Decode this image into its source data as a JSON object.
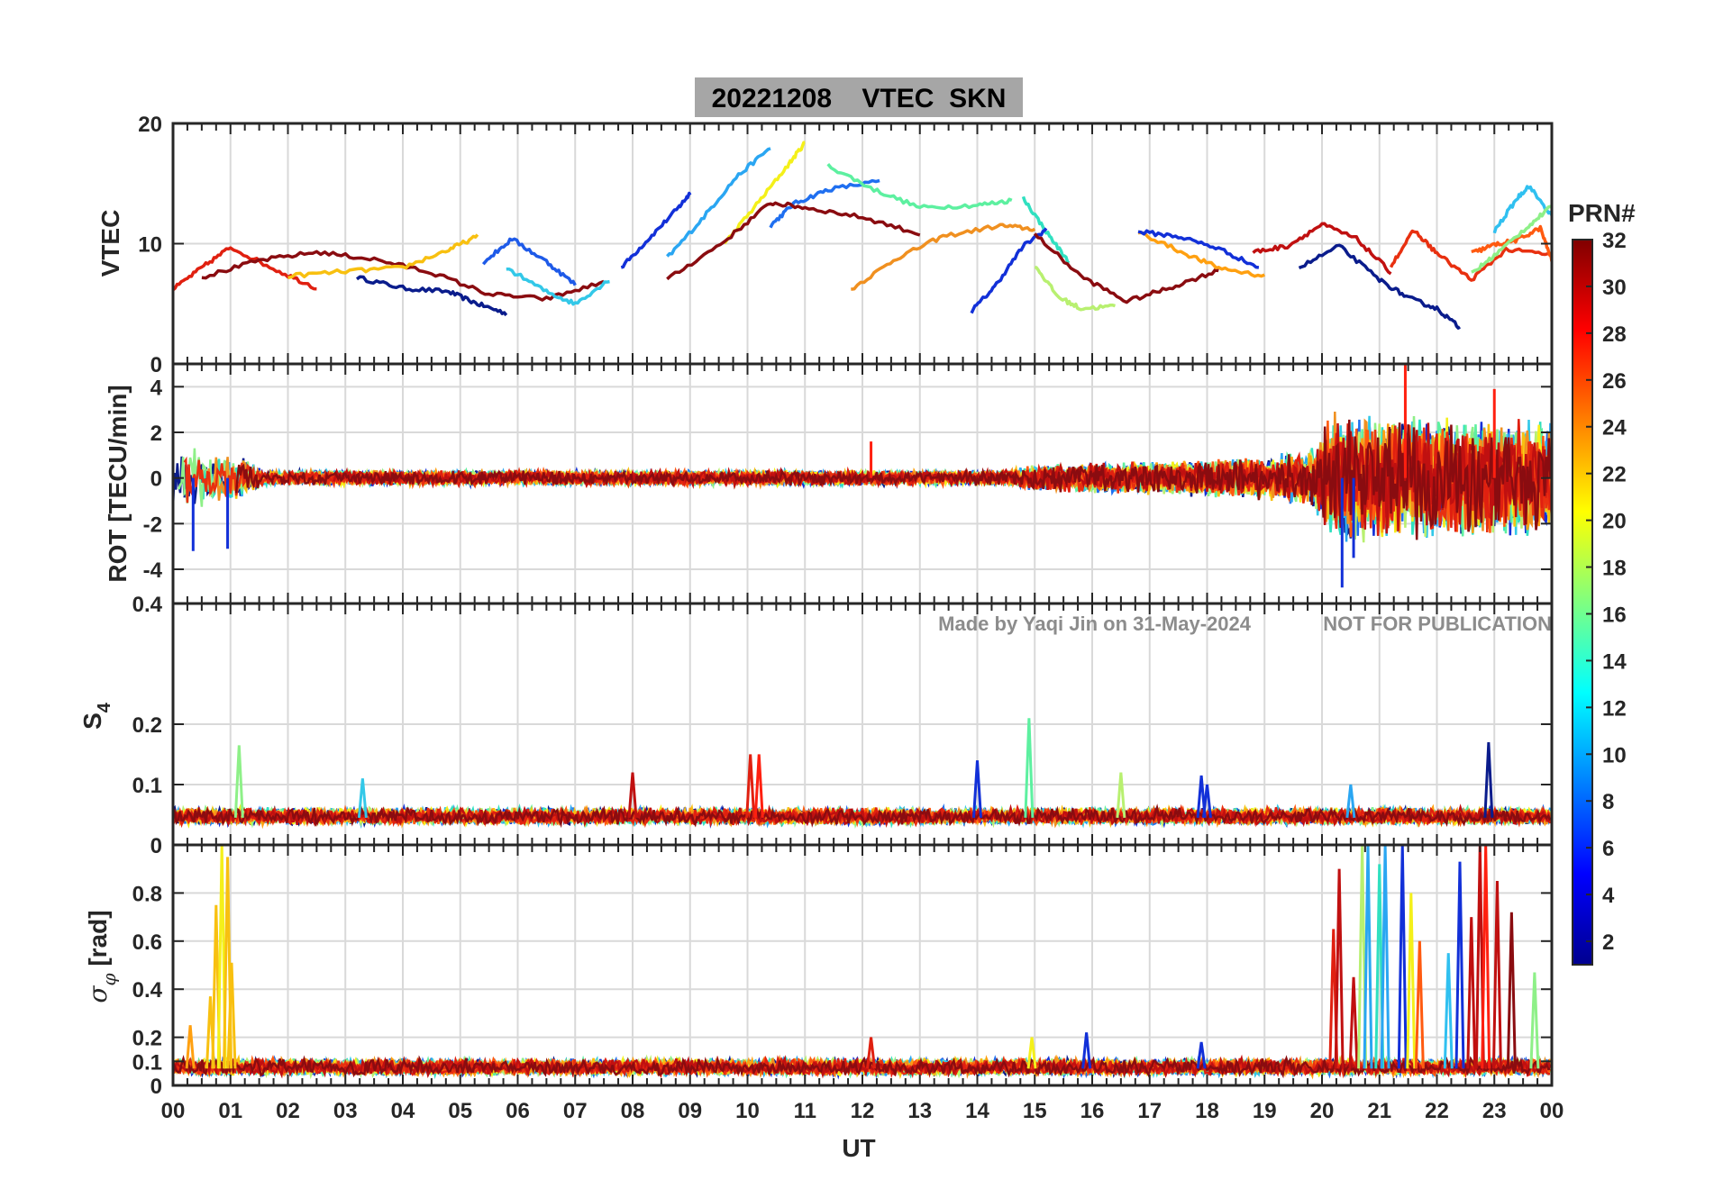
{
  "chart_data": [
    {
      "type": "line",
      "panel": "vtec",
      "title": "20221208    VTEC  SKN",
      "ylabel": "VTEC",
      "ylim": [
        0,
        20
      ],
      "yticks": [
        0,
        10,
        20
      ],
      "xlim": [
        0,
        24
      ],
      "grid": true,
      "series": [
        {
          "name": "",
          "color": "#0a1c8c",
          "x": [
            3.2,
            4.0,
            4.8,
            5.3,
            5.8
          ],
          "y": [
            7.2,
            6.3,
            6.0,
            5.0,
            4.2
          ]
        },
        {
          "name": "",
          "color": "#1230d8",
          "x": [
            7.8,
            8.3,
            8.8,
            9.0
          ],
          "y": [
            8.0,
            10.5,
            13.0,
            14.2
          ]
        },
        {
          "name": "",
          "color": "#1f6ff0",
          "x": [
            10.4,
            10.8,
            11.4,
            12.3
          ],
          "y": [
            11.5,
            13.3,
            14.5,
            15.2
          ]
        },
        {
          "name": "",
          "color": "#2aa6f2",
          "x": [
            8.6,
            9.2,
            9.8,
            10.4
          ],
          "y": [
            8.8,
            12.0,
            15.5,
            18.0
          ]
        },
        {
          "name": "",
          "color": "#f4f01a",
          "x": [
            9.6,
            10.2,
            10.7,
            11.0
          ],
          "y": [
            10.0,
            13.5,
            16.5,
            18.4
          ]
        },
        {
          "name": "",
          "color": "#5df0a0",
          "x": [
            11.4,
            12.2,
            13.0,
            14.0,
            14.6
          ],
          "y": [
            16.5,
            14.5,
            13.0,
            13.2,
            13.6
          ]
        },
        {
          "name": "",
          "color": "#f09020",
          "x": [
            11.8,
            12.6,
            13.4,
            14.4,
            15.0
          ],
          "y": [
            6.2,
            8.8,
            10.6,
            11.5,
            11.2
          ]
        },
        {
          "name": "",
          "color": "#8a0c10",
          "x": [
            8.6,
            9.6,
            10.4,
            11.0,
            12.0,
            13.0
          ],
          "y": [
            7.0,
            10.2,
            13.4,
            13.0,
            12.2,
            10.8
          ]
        },
        {
          "name": "",
          "color": "#e02010",
          "x": [
            0.0,
            0.5,
            1.0,
            1.8,
            2.5
          ],
          "y": [
            6.2,
            8.0,
            9.7,
            7.8,
            6.3
          ]
        },
        {
          "name": "",
          "color": "#8a0c10",
          "x": [
            0.5,
            1.5,
            2.5,
            3.5,
            4.5,
            5.5,
            6.5,
            7.5
          ],
          "y": [
            7.2,
            8.6,
            9.3,
            8.7,
            7.6,
            5.8,
            5.4,
            6.8
          ]
        },
        {
          "name": "",
          "color": "#f8c010",
          "x": [
            2.0,
            3.0,
            4.0,
            4.8,
            5.3
          ],
          "y": [
            7.3,
            7.7,
            8.0,
            9.5,
            10.6
          ]
        },
        {
          "name": "",
          "color": "#33c8e8",
          "x": [
            5.8,
            6.5,
            7.0,
            7.6
          ],
          "y": [
            8.0,
            6.0,
            5.0,
            7.0
          ]
        },
        {
          "name": "",
          "color": "#1e5ae8",
          "x": [
            5.4,
            5.9,
            6.5,
            7.0
          ],
          "y": [
            8.4,
            10.4,
            8.5,
            6.6
          ]
        },
        {
          "name": "",
          "color": "#30e0c0",
          "x": [
            14.8,
            15.2,
            15.6
          ],
          "y": [
            13.8,
            11.0,
            8.4
          ]
        },
        {
          "name": "",
          "color": "#1230d8",
          "x": [
            13.9,
            14.3,
            14.8,
            15.2
          ],
          "y": [
            4.4,
            6.4,
            9.8,
            11.2
          ]
        },
        {
          "name": "",
          "color": "#8a0c10",
          "x": [
            15.0,
            15.8,
            16.6,
            17.4,
            18.2
          ],
          "y": [
            10.8,
            7.3,
            5.2,
            6.4,
            7.8
          ]
        },
        {
          "name": "",
          "color": "#b8f070",
          "x": [
            15.0,
            15.4,
            15.8,
            16.4
          ],
          "y": [
            8.2,
            5.6,
            4.6,
            4.8
          ]
        },
        {
          "name": "",
          "color": "#ffa010",
          "x": [
            16.8,
            17.6,
            18.2,
            19.0
          ],
          "y": [
            11.0,
            9.2,
            8.0,
            7.3
          ]
        },
        {
          "name": "",
          "color": "#1230d8",
          "x": [
            16.8,
            17.5,
            18.2,
            18.9
          ],
          "y": [
            11.0,
            10.6,
            9.6,
            8.0
          ]
        },
        {
          "name": "",
          "color": "#c01010",
          "x": [
            18.8,
            19.4,
            20.0,
            20.6,
            21.2
          ],
          "y": [
            9.3,
            9.8,
            11.6,
            10.4,
            7.6
          ]
        },
        {
          "name": "",
          "color": "#0a1c8c",
          "x": [
            19.6,
            20.3,
            21.0,
            21.5,
            22.0,
            22.4
          ],
          "y": [
            8.0,
            9.8,
            7.0,
            5.5,
            4.6,
            3.0
          ]
        },
        {
          "name": "",
          "color": "#e83010",
          "x": [
            21.2,
            21.6,
            22.0,
            22.6,
            23.2,
            24.0
          ],
          "y": [
            8.2,
            11.1,
            9.2,
            7.0,
            9.5,
            9.1
          ]
        },
        {
          "name": "",
          "color": "#ff5a10",
          "x": [
            22.6,
            23.0,
            23.4,
            23.8,
            24.0
          ],
          "y": [
            9.2,
            9.9,
            10.3,
            11.3,
            8.6
          ]
        },
        {
          "name": "",
          "color": "#30c0f0",
          "x": [
            23.0,
            23.4,
            23.6,
            24.0
          ],
          "y": [
            11.0,
            13.8,
            14.8,
            12.3
          ]
        },
        {
          "name": "",
          "color": "#8ef088",
          "x": [
            22.6,
            23.0,
            23.6,
            24.0
          ],
          "y": [
            7.5,
            9.0,
            11.5,
            13.1
          ]
        }
      ]
    },
    {
      "type": "line",
      "panel": "rot",
      "ylabel": "ROT [TECU/min]",
      "ylim": [
        -5.5,
        5
      ],
      "yticks": [
        -4,
        -2,
        0,
        2,
        4
      ],
      "xlim": [
        0,
        24
      ],
      "grid": true,
      "noise_profile": [
        {
          "x": 0.0,
          "amp": 1.6
        },
        {
          "x": 1.2,
          "amp": 1.0
        },
        {
          "x": 1.6,
          "amp": 0.35
        },
        {
          "x": 14.5,
          "amp": 0.35
        },
        {
          "x": 15.0,
          "amp": 0.6
        },
        {
          "x": 18.5,
          "amp": 0.9
        },
        {
          "x": 19.8,
          "amp": 1.3
        },
        {
          "x": 20.2,
          "amp": 3.0
        },
        {
          "x": 24.0,
          "amp": 2.6
        }
      ],
      "spikes": [
        {
          "x": 20.35,
          "y": -4.8
        },
        {
          "x": 21.45,
          "y": 5.3
        },
        {
          "x": 20.55,
          "y": -3.5
        },
        {
          "x": 23.0,
          "y": 3.9
        },
        {
          "x": 0.35,
          "y": -3.2
        },
        {
          "x": 0.95,
          "y": -3.1
        },
        {
          "x": 12.15,
          "y": 1.6
        }
      ]
    },
    {
      "type": "line",
      "panel": "s4",
      "ylabel": "S",
      "ylabel_sub": "4",
      "ylim": [
        0,
        0.4
      ],
      "yticks": [
        0,
        0.1,
        0.2,
        0.4
      ],
      "ytick_labels": [
        "0",
        "0.1",
        "0.2",
        "0.4"
      ],
      "xlim": [
        0,
        24
      ],
      "grid": true,
      "baseline": 0.045,
      "noise_amp": 0.02,
      "spikes": [
        {
          "x": 1.15,
          "y": 0.165,
          "color": "#8ef088"
        },
        {
          "x": 3.3,
          "y": 0.11,
          "color": "#33c8e8"
        },
        {
          "x": 10.05,
          "y": 0.15,
          "color": "#e02010"
        },
        {
          "x": 10.2,
          "y": 0.15,
          "color": "#ff2010"
        },
        {
          "x": 14.0,
          "y": 0.14,
          "color": "#1230d8"
        },
        {
          "x": 14.9,
          "y": 0.21,
          "color": "#5df0a0"
        },
        {
          "x": 16.5,
          "y": 0.12,
          "color": "#b8f070"
        },
        {
          "x": 17.9,
          "y": 0.115,
          "color": "#1230d8"
        },
        {
          "x": 22.9,
          "y": 0.17,
          "color": "#0a1c8c"
        },
        {
          "x": 8.0,
          "y": 0.12,
          "color": "#c01010"
        },
        {
          "x": 18.0,
          "y": 0.1,
          "color": "#1230d8"
        },
        {
          "x": 20.5,
          "y": 0.1,
          "color": "#2aa6f2"
        }
      ]
    },
    {
      "type": "line",
      "panel": "sigma_phi",
      "ylabel": "σ",
      "ylabel_sub": "φ",
      "ylabel_suffix": "[rad]",
      "xlabel": "UT",
      "ylim": [
        0,
        1
      ],
      "yticks": [
        0,
        0.1,
        0.2,
        0.4,
        0.6,
        0.8
      ],
      "ytick_labels": [
        "0",
        "0.1",
        "0.2",
        "0.4",
        "0.6",
        "0.8"
      ],
      "xlim": [
        0,
        24
      ],
      "xticks": [
        0,
        1,
        2,
        3,
        4,
        5,
        6,
        7,
        8,
        9,
        10,
        11,
        12,
        13,
        14,
        15,
        16,
        17,
        18,
        19,
        20,
        21,
        22,
        23,
        24
      ],
      "xtick_labels": [
        "00",
        "01",
        "02",
        "03",
        "04",
        "05",
        "06",
        "07",
        "08",
        "09",
        "10",
        "11",
        "12",
        "13",
        "14",
        "15",
        "16",
        "17",
        "18",
        "19",
        "20",
        "21",
        "22",
        "23",
        "00"
      ],
      "grid": true,
      "baseline": 0.07,
      "noise_amp": 0.05,
      "spikes": [
        {
          "x": 0.65,
          "y": 0.37,
          "color": "#f8c010"
        },
        {
          "x": 0.75,
          "y": 0.75,
          "color": "#f8c010"
        },
        {
          "x": 0.85,
          "y": 1.0,
          "color": "#f4f01a"
        },
        {
          "x": 0.95,
          "y": 0.95,
          "color": "#f8c010"
        },
        {
          "x": 1.02,
          "y": 0.51,
          "color": "#f8c010"
        },
        {
          "x": 0.3,
          "y": 0.25,
          "color": "#ffa010"
        },
        {
          "x": 20.2,
          "y": 0.65,
          "color": "#e02010"
        },
        {
          "x": 20.3,
          "y": 0.9,
          "color": "#c01010"
        },
        {
          "x": 20.55,
          "y": 0.45,
          "color": "#c01010"
        },
        {
          "x": 20.7,
          "y": 1.0,
          "color": "#b8f070"
        },
        {
          "x": 20.8,
          "y": 1.0,
          "color": "#2aa6f2"
        },
        {
          "x": 21.0,
          "y": 0.92,
          "color": "#30e0c0"
        },
        {
          "x": 21.1,
          "y": 1.0,
          "color": "#2aa6f2"
        },
        {
          "x": 21.4,
          "y": 1.0,
          "color": "#1230d8"
        },
        {
          "x": 21.55,
          "y": 0.8,
          "color": "#f4f01a"
        },
        {
          "x": 21.7,
          "y": 0.6,
          "color": "#ff5a10"
        },
        {
          "x": 22.4,
          "y": 0.93,
          "color": "#1230d8"
        },
        {
          "x": 22.6,
          "y": 0.7,
          "color": "#c01010"
        },
        {
          "x": 22.75,
          "y": 1.0,
          "color": "#c01010"
        },
        {
          "x": 22.85,
          "y": 1.0,
          "color": "#ff2010"
        },
        {
          "x": 23.05,
          "y": 0.85,
          "color": "#c01010"
        },
        {
          "x": 23.3,
          "y": 0.72,
          "color": "#8a0c10"
        },
        {
          "x": 22.2,
          "y": 0.55,
          "color": "#30c0f0"
        },
        {
          "x": 23.7,
          "y": 0.47,
          "color": "#8ef088"
        },
        {
          "x": 15.9,
          "y": 0.22,
          "color": "#1230d8"
        },
        {
          "x": 12.15,
          "y": 0.2,
          "color": "#e02010"
        },
        {
          "x": 14.95,
          "y": 0.2,
          "color": "#f4f01a"
        },
        {
          "x": 17.9,
          "y": 0.18,
          "color": "#1230d8"
        }
      ]
    }
  ],
  "colorbar": {
    "label": "PRN#",
    "range": [
      1,
      32
    ],
    "ticks": [
      2,
      4,
      6,
      8,
      10,
      12,
      14,
      16,
      18,
      20,
      22,
      24,
      26,
      28,
      30,
      32
    ]
  },
  "watermark": {
    "author": "Made by Yaqi Jin on 31-May-2024",
    "notice": "NOT FOR PUBLICATION"
  }
}
